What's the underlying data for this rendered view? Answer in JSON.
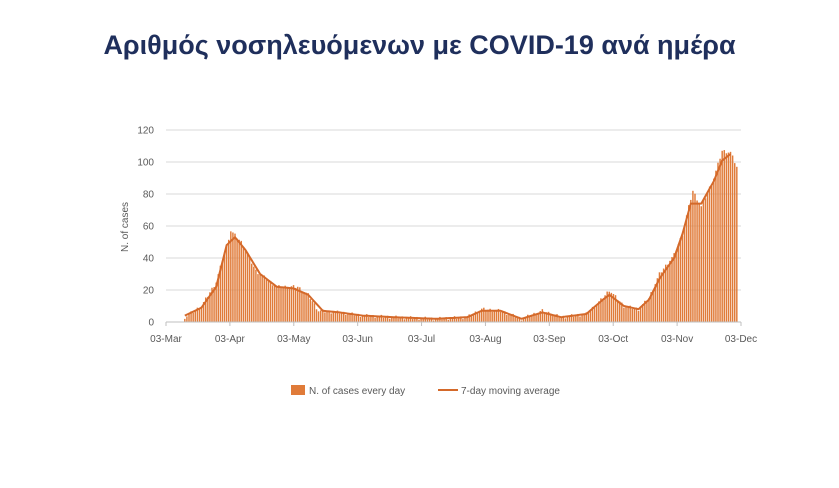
{
  "title": "Αριθμός νοσηλευόμενων με COVID-19 ανά ημέρα",
  "colors": {
    "bar": "#e07b39",
    "line": "#d4692a",
    "grid": "#d9d9d9",
    "axis": "#bfbfbf",
    "title": "#1f2f5c"
  },
  "chart_data": {
    "type": "bar",
    "ylabel": "N. of cases",
    "xlabel": "",
    "ylim": [
      0,
      120
    ],
    "yticks": [
      0,
      20,
      40,
      60,
      80,
      100,
      120
    ],
    "xrange": [
      "2020-03-03",
      "2020-12-03"
    ],
    "xtick_labels": [
      "03-Mar",
      "03-Apr",
      "03-May",
      "03-Jun",
      "03-Jul",
      "03-Aug",
      "03-Sep",
      "03-Oct",
      "03-Nov",
      "03-Dec"
    ],
    "grid": true,
    "legend_position": "bottom",
    "series": [
      {
        "name": "N. of cases every day",
        "kind": "bar",
        "start_date": "2020-03-12",
        "end_date": "2020-12-01",
        "anchors": [
          [
            "2020-03-12",
            3
          ],
          [
            "2020-03-20",
            10
          ],
          [
            "2020-03-27",
            25
          ],
          [
            "2020-04-03",
            57
          ],
          [
            "2020-04-08",
            50
          ],
          [
            "2020-04-15",
            32
          ],
          [
            "2020-04-25",
            22
          ],
          [
            "2020-05-05",
            22
          ],
          [
            "2020-05-10",
            17
          ],
          [
            "2020-05-15",
            7
          ],
          [
            "2020-05-25",
            6
          ],
          [
            "2020-06-05",
            4
          ],
          [
            "2020-06-20",
            3
          ],
          [
            "2020-07-10",
            2
          ],
          [
            "2020-07-25",
            3
          ],
          [
            "2020-08-01",
            8
          ],
          [
            "2020-08-10",
            7
          ],
          [
            "2020-08-20",
            2
          ],
          [
            "2020-08-30",
            7
          ],
          [
            "2020-09-08",
            3
          ],
          [
            "2020-09-20",
            5
          ],
          [
            "2020-09-28",
            15
          ],
          [
            "2020-10-01",
            20
          ],
          [
            "2020-10-08",
            10
          ],
          [
            "2020-10-15",
            8
          ],
          [
            "2020-10-20",
            15
          ],
          [
            "2020-10-25",
            30
          ],
          [
            "2020-11-01",
            42
          ],
          [
            "2020-11-05",
            55
          ],
          [
            "2020-11-08",
            72
          ],
          [
            "2020-11-10",
            82
          ],
          [
            "2020-11-14",
            72
          ],
          [
            "2020-11-20",
            90
          ],
          [
            "2020-11-24",
            107
          ],
          [
            "2020-11-28",
            106
          ],
          [
            "2020-11-30",
            100
          ],
          [
            "2020-12-01",
            97
          ]
        ]
      },
      {
        "name": "7-day moving average",
        "kind": "line",
        "start_date": "2020-03-12",
        "end_date": "2020-11-28",
        "anchors": [
          [
            "2020-03-12",
            4
          ],
          [
            "2020-03-20",
            9
          ],
          [
            "2020-03-27",
            22
          ],
          [
            "2020-04-01",
            48
          ],
          [
            "2020-04-05",
            53
          ],
          [
            "2020-04-10",
            45
          ],
          [
            "2020-04-17",
            30
          ],
          [
            "2020-04-25",
            22
          ],
          [
            "2020-05-03",
            21
          ],
          [
            "2020-05-10",
            17
          ],
          [
            "2020-05-17",
            7
          ],
          [
            "2020-05-25",
            6
          ],
          [
            "2020-06-05",
            4
          ],
          [
            "2020-06-20",
            3
          ],
          [
            "2020-07-10",
            2
          ],
          [
            "2020-07-25",
            3
          ],
          [
            "2020-08-01",
            7
          ],
          [
            "2020-08-10",
            7
          ],
          [
            "2020-08-20",
            2
          ],
          [
            "2020-08-30",
            6
          ],
          [
            "2020-09-08",
            3
          ],
          [
            "2020-09-20",
            5
          ],
          [
            "2020-09-28",
            14
          ],
          [
            "2020-10-01",
            17
          ],
          [
            "2020-10-08",
            10
          ],
          [
            "2020-10-15",
            8
          ],
          [
            "2020-10-20",
            14
          ],
          [
            "2020-10-25",
            27
          ],
          [
            "2020-11-01",
            40
          ],
          [
            "2020-11-05",
            55
          ],
          [
            "2020-11-09",
            74
          ],
          [
            "2020-11-14",
            74
          ],
          [
            "2020-11-20",
            88
          ],
          [
            "2020-11-24",
            101
          ],
          [
            "2020-11-28",
            105
          ]
        ]
      }
    ]
  }
}
